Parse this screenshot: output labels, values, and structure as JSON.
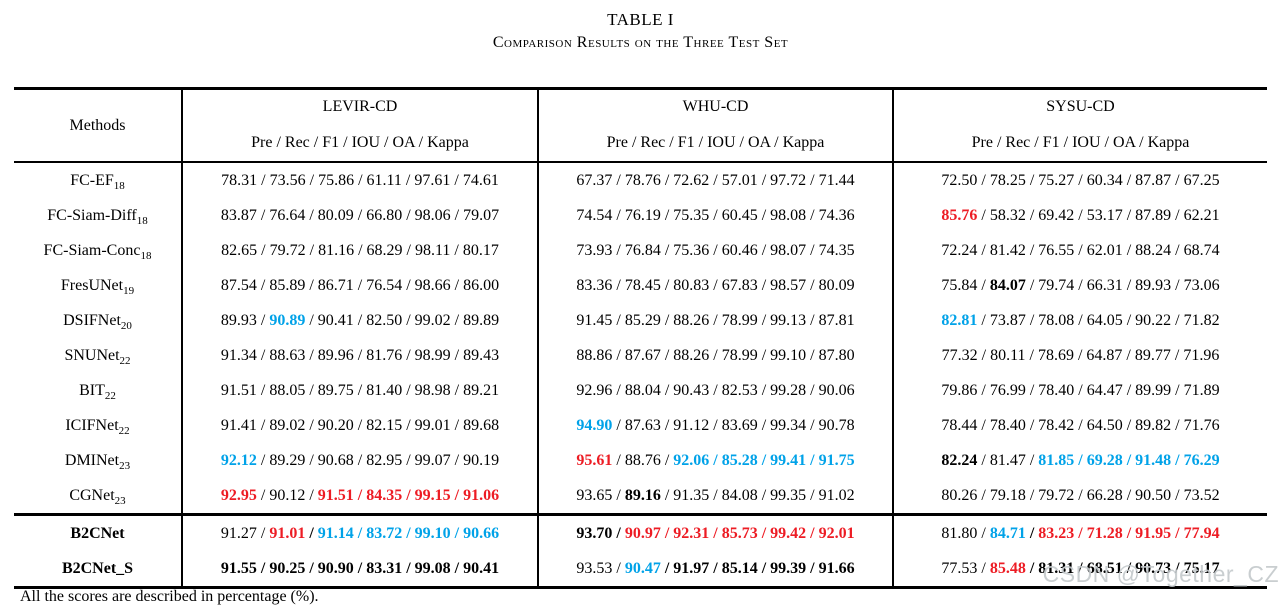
{
  "title": "TABLE I",
  "subtitle": "Comparison Results on the Three Test Set",
  "footnote": "All the scores are described in percentage (%).",
  "watermark": "CSDN @Together_CZ",
  "colors": {
    "best_red": "#ed1c24",
    "second_blue": "#00a2e8",
    "text": "#000000"
  },
  "style_legend": {
    "p": "plain",
    "b": "bold-black",
    "r": "bold-red-best",
    "u": "bold-blue-second"
  },
  "table": {
    "methods_header": "Methods",
    "metrics_header": "Pre / Rec / F1 / IOU / OA / Kappa",
    "datasets": [
      "LEVIR-CD",
      "WHU-CD",
      "SYSU-CD"
    ],
    "rows": [
      {
        "method": "FC-EF",
        "sub": "18",
        "bold": false,
        "group_sep": false,
        "cells": [
          {
            "values": [
              "78.31",
              "73.56",
              "75.86",
              "61.11",
              "97.61",
              "74.61"
            ],
            "styles": [
              "p",
              "p",
              "p",
              "p",
              "p",
              "p"
            ]
          },
          {
            "values": [
              "67.37",
              "78.76",
              "72.62",
              "57.01",
              "97.72",
              "71.44"
            ],
            "styles": [
              "p",
              "p",
              "p",
              "p",
              "p",
              "p"
            ]
          },
          {
            "values": [
              "72.50",
              "78.25",
              "75.27",
              "60.34",
              "87.87",
              "67.25"
            ],
            "styles": [
              "p",
              "p",
              "p",
              "p",
              "p",
              "p"
            ]
          }
        ]
      },
      {
        "method": "FC-Siam-Diff",
        "sub": "18",
        "bold": false,
        "group_sep": false,
        "cells": [
          {
            "values": [
              "83.87",
              "76.64",
              "80.09",
              "66.80",
              "98.06",
              "79.07"
            ],
            "styles": [
              "p",
              "p",
              "p",
              "p",
              "p",
              "p"
            ]
          },
          {
            "values": [
              "74.54",
              "76.19",
              "75.35",
              "60.45",
              "98.08",
              "74.36"
            ],
            "styles": [
              "p",
              "p",
              "p",
              "p",
              "p",
              "p"
            ]
          },
          {
            "values": [
              "85.76",
              "58.32",
              "69.42",
              "53.17",
              "87.89",
              "62.21"
            ],
            "styles": [
              "r",
              "p",
              "p",
              "p",
              "p",
              "p"
            ]
          }
        ]
      },
      {
        "method": "FC-Siam-Conc",
        "sub": "18",
        "bold": false,
        "group_sep": false,
        "cells": [
          {
            "values": [
              "82.65",
              "79.72",
              "81.16",
              "68.29",
              "98.11",
              "80.17"
            ],
            "styles": [
              "p",
              "p",
              "p",
              "p",
              "p",
              "p"
            ]
          },
          {
            "values": [
              "73.93",
              "76.84",
              "75.36",
              "60.46",
              "98.07",
              "74.35"
            ],
            "styles": [
              "p",
              "p",
              "p",
              "p",
              "p",
              "p"
            ]
          },
          {
            "values": [
              "72.24",
              "81.42",
              "76.55",
              "62.01",
              "88.24",
              "68.74"
            ],
            "styles": [
              "p",
              "p",
              "p",
              "p",
              "p",
              "p"
            ]
          }
        ]
      },
      {
        "method": "FresUNet",
        "sub": "19",
        "bold": false,
        "group_sep": false,
        "cells": [
          {
            "values": [
              "87.54",
              "85.89",
              "86.71",
              "76.54",
              "98.66",
              "86.00"
            ],
            "styles": [
              "p",
              "p",
              "p",
              "p",
              "p",
              "p"
            ]
          },
          {
            "values": [
              "83.36",
              "78.45",
              "80.83",
              "67.83",
              "98.57",
              "80.09"
            ],
            "styles": [
              "p",
              "p",
              "p",
              "p",
              "p",
              "p"
            ]
          },
          {
            "values": [
              "75.84",
              "84.07",
              "79.74",
              "66.31",
              "89.93",
              "73.06"
            ],
            "styles": [
              "p",
              "b",
              "p",
              "p",
              "p",
              "p"
            ]
          }
        ]
      },
      {
        "method": "DSIFNet",
        "sub": "20",
        "bold": false,
        "group_sep": false,
        "cells": [
          {
            "values": [
              "89.93",
              "90.89",
              "90.41",
              "82.50",
              "99.02",
              "89.89"
            ],
            "styles": [
              "p",
              "u",
              "p",
              "p",
              "p",
              "p"
            ]
          },
          {
            "values": [
              "91.45",
              "85.29",
              "88.26",
              "78.99",
              "99.13",
              "87.81"
            ],
            "styles": [
              "p",
              "p",
              "p",
              "p",
              "p",
              "p"
            ]
          },
          {
            "values": [
              "82.81",
              "73.87",
              "78.08",
              "64.05",
              "90.22",
              "71.82"
            ],
            "styles": [
              "u",
              "p",
              "p",
              "p",
              "p",
              "p"
            ]
          }
        ]
      },
      {
        "method": "SNUNet",
        "sub": "22",
        "bold": false,
        "group_sep": false,
        "cells": [
          {
            "values": [
              "91.34",
              "88.63",
              "89.96",
              "81.76",
              "98.99",
              "89.43"
            ],
            "styles": [
              "p",
              "p",
              "p",
              "p",
              "p",
              "p"
            ]
          },
          {
            "values": [
              "88.86",
              "87.67",
              "88.26",
              "78.99",
              "99.10",
              "87.80"
            ],
            "styles": [
              "p",
              "p",
              "p",
              "p",
              "p",
              "p"
            ]
          },
          {
            "values": [
              "77.32",
              "80.11",
              "78.69",
              "64.87",
              "89.77",
              "71.96"
            ],
            "styles": [
              "p",
              "p",
              "p",
              "p",
              "p",
              "p"
            ]
          }
        ]
      },
      {
        "method": "BIT",
        "sub": "22",
        "bold": false,
        "group_sep": false,
        "cells": [
          {
            "values": [
              "91.51",
              "88.05",
              "89.75",
              "81.40",
              "98.98",
              "89.21"
            ],
            "styles": [
              "p",
              "p",
              "p",
              "p",
              "p",
              "p"
            ]
          },
          {
            "values": [
              "92.96",
              "88.04",
              "90.43",
              "82.53",
              "99.28",
              "90.06"
            ],
            "styles": [
              "p",
              "p",
              "p",
              "p",
              "p",
              "p"
            ]
          },
          {
            "values": [
              "79.86",
              "76.99",
              "78.40",
              "64.47",
              "89.99",
              "71.89"
            ],
            "styles": [
              "p",
              "p",
              "p",
              "p",
              "p",
              "p"
            ]
          }
        ]
      },
      {
        "method": "ICIFNet",
        "sub": "22",
        "bold": false,
        "group_sep": false,
        "cells": [
          {
            "values": [
              "91.41",
              "89.02",
              "90.20",
              "82.15",
              "99.01",
              "89.68"
            ],
            "styles": [
              "p",
              "p",
              "p",
              "p",
              "p",
              "p"
            ]
          },
          {
            "values": [
              "94.90",
              "87.63",
              "91.12",
              "83.69",
              "99.34",
              "90.78"
            ],
            "styles": [
              "u",
              "p",
              "p",
              "p",
              "p",
              "p"
            ]
          },
          {
            "values": [
              "78.44",
              "78.40",
              "78.42",
              "64.50",
              "89.82",
              "71.76"
            ],
            "styles": [
              "p",
              "p",
              "p",
              "p",
              "p",
              "p"
            ]
          }
        ]
      },
      {
        "method": "DMINet",
        "sub": "23",
        "bold": false,
        "group_sep": false,
        "cells": [
          {
            "values": [
              "92.12",
              "89.29",
              "90.68",
              "82.95",
              "99.07",
              "90.19"
            ],
            "styles": [
              "u",
              "p",
              "p",
              "p",
              "p",
              "p"
            ]
          },
          {
            "values": [
              "95.61",
              "88.76",
              "92.06",
              "85.28",
              "99.41",
              "91.75"
            ],
            "styles": [
              "r",
              "p",
              "u",
              "u",
              "u",
              "u"
            ]
          },
          {
            "values": [
              "82.24",
              "81.47",
              "81.85",
              "69.28",
              "91.48",
              "76.29"
            ],
            "styles": [
              "b",
              "p",
              "u",
              "u",
              "u",
              "u"
            ]
          }
        ]
      },
      {
        "method": "CGNet",
        "sub": "23",
        "bold": false,
        "group_sep": false,
        "cells": [
          {
            "values": [
              "92.95",
              "90.12",
              "91.51",
              "84.35",
              "99.15",
              "91.06"
            ],
            "styles": [
              "r",
              "p",
              "r",
              "r",
              "r",
              "r"
            ]
          },
          {
            "values": [
              "93.65",
              "89.16",
              "91.35",
              "84.08",
              "99.35",
              "91.02"
            ],
            "styles": [
              "p",
              "b",
              "p",
              "p",
              "p",
              "p"
            ]
          },
          {
            "values": [
              "80.26",
              "79.18",
              "79.72",
              "66.28",
              "90.50",
              "73.52"
            ],
            "styles": [
              "p",
              "p",
              "p",
              "p",
              "p",
              "p"
            ]
          }
        ]
      },
      {
        "method": "B2CNet",
        "sub": "",
        "bold": true,
        "group_sep": true,
        "cells": [
          {
            "values": [
              "91.27",
              "91.01",
              "91.14",
              "83.72",
              "99.10",
              "90.66"
            ],
            "styles": [
              "p",
              "r",
              "u",
              "u",
              "u",
              "u"
            ]
          },
          {
            "values": [
              "93.70",
              "90.97",
              "92.31",
              "85.73",
              "99.42",
              "92.01"
            ],
            "styles": [
              "b",
              "r",
              "r",
              "r",
              "r",
              "r"
            ]
          },
          {
            "values": [
              "81.80",
              "84.71",
              "83.23",
              "71.28",
              "91.95",
              "77.94"
            ],
            "styles": [
              "p",
              "u",
              "r",
              "r",
              "r",
              "r"
            ]
          }
        ]
      },
      {
        "method": "B2CNet_S",
        "sub": "",
        "bold": true,
        "group_sep": false,
        "cells": [
          {
            "values": [
              "91.55",
              "90.25",
              "90.90",
              "83.31",
              "99.08",
              "90.41"
            ],
            "styles": [
              "b",
              "b",
              "b",
              "b",
              "b",
              "b"
            ]
          },
          {
            "values": [
              "93.53",
              "90.47",
              "91.97",
              "85.14",
              "99.39",
              "91.66"
            ],
            "styles": [
              "p",
              "u",
              "b",
              "b",
              "b",
              "b"
            ]
          },
          {
            "values": [
              "77.53",
              "85.48",
              "81.31",
              "68.51",
              "90.73",
              "75.17"
            ],
            "styles": [
              "p",
              "r",
              "b",
              "b",
              "b",
              "b"
            ]
          }
        ]
      }
    ]
  }
}
